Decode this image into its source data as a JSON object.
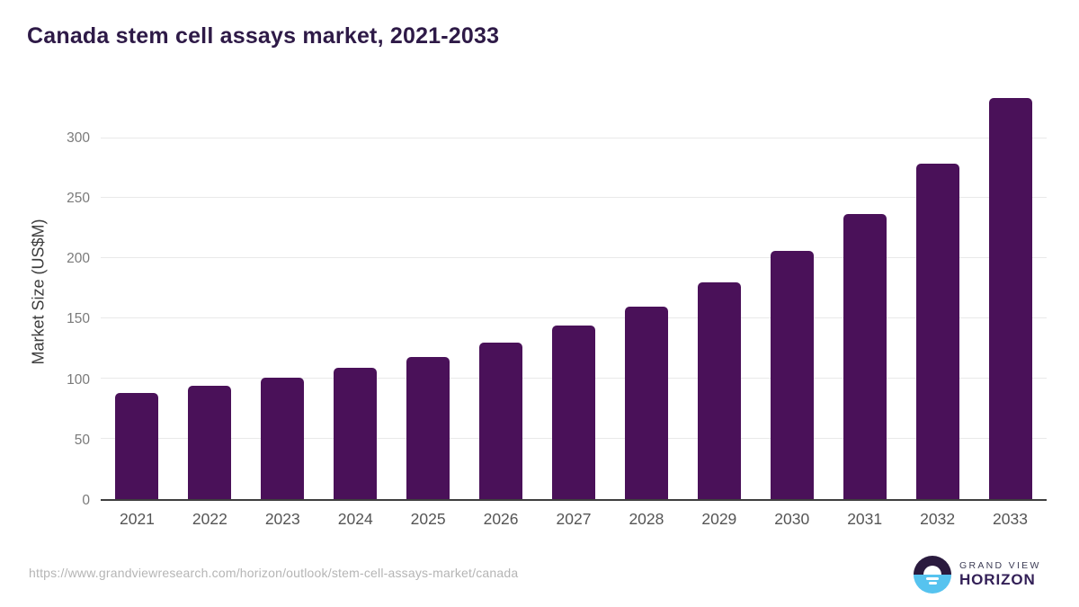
{
  "header": {
    "title": "Canada stem cell assays market, 2021-2033"
  },
  "chart_data": {
    "type": "bar",
    "title": "Canada stem cell assays market, 2021-2033",
    "categories": [
      "2021",
      "2022",
      "2023",
      "2024",
      "2025",
      "2026",
      "2027",
      "2028",
      "2029",
      "2030",
      "2031",
      "2032",
      "2033"
    ],
    "values": [
      88,
      94,
      101,
      109,
      118,
      130,
      144,
      160,
      180,
      206,
      237,
      279,
      333
    ],
    "xlabel": "",
    "ylabel": "Market Size (US$M)",
    "yticks": [
      0,
      50,
      100,
      150,
      200,
      250,
      300
    ],
    "ylim": [
      0,
      340
    ],
    "grid": "horizontal-light",
    "legend": "none",
    "bar_color": "#4a1159"
  },
  "colors": {
    "title": "#2e1a47",
    "bar": "#4a1159",
    "gridline": "#e9e9e9",
    "axis_line": "#3f3f3f",
    "ytick_text": "#7a7a7a",
    "xtick_text": "#555555",
    "url_text": "#b5b5b5",
    "logo_dark_half": "#2a1a3e",
    "logo_blue_half": "#56c3ef",
    "logo_grandview_text": "#3c3c55",
    "logo_horizon_text": "#332057"
  },
  "footer": {
    "source_url": "https://www.grandviewresearch.com/horizon/outlook/stem-cell-assays-market/canada",
    "logo": {
      "line1": "GRAND VIEW",
      "line2": "HORIZON",
      "icon": "grand-view-horizon-sunrise-icon"
    }
  }
}
